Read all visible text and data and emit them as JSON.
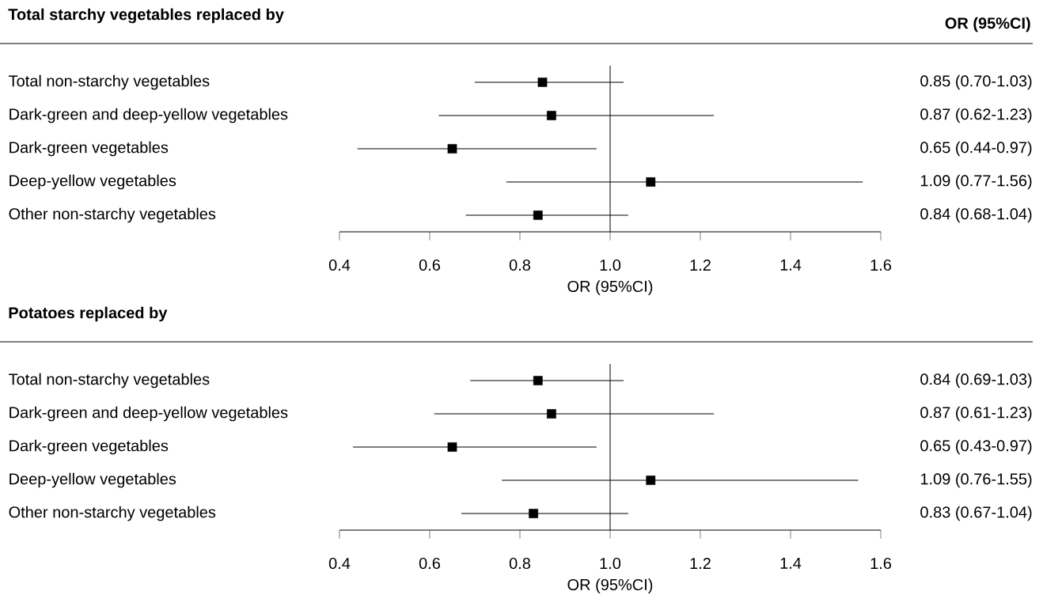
{
  "chart_data": [
    {
      "type": "scatter",
      "title": "Total starchy vegetables replaced by",
      "xlabel": "OR (95%CI)",
      "annotations": [
        "OR (95%CI)"
      ],
      "orientation": "horizontal",
      "color": "#000000",
      "marker": "square",
      "categories": [
        "Total non-starchy vegetables",
        "Dark-green and deep-yellow vegetables",
        "Dark-green vegetables",
        "Deep-yellow vegetables",
        "Other non-starchy vegetables"
      ],
      "values": [
        0.85,
        0.87,
        0.65,
        1.09,
        0.84
      ],
      "errors": [
        [
          0.7,
          1.03
        ],
        [
          0.62,
          1.23
        ],
        [
          0.44,
          0.97
        ],
        [
          0.77,
          1.56
        ],
        [
          0.68,
          1.04
        ]
      ],
      "value_labels": [
        "0.85 (0.70-1.03)",
        "0.87 (0.62-1.23)",
        "0.65 (0.44-0.97)",
        "1.09 (0.77-1.56)",
        "0.84 (0.68-1.04)"
      ],
      "xlim": [
        0.4,
        1.6
      ],
      "xticks": [
        {
          "value": 0.4,
          "label": "0.4"
        },
        {
          "value": 0.6,
          "label": "0.6"
        },
        {
          "value": 0.8,
          "label": "0.8"
        },
        {
          "value": 1,
          "label": "1.0"
        },
        {
          "value": 1.2,
          "label": "1.2"
        },
        {
          "value": 1.4,
          "label": "1.4"
        },
        {
          "value": 1.6,
          "label": "1.6"
        }
      ],
      "ref_lines": [
        {
          "axis": "x",
          "value": 1
        }
      ]
    },
    {
      "type": "scatter",
      "title": "Potatoes replaced by",
      "xlabel": "OR (95%CI)",
      "orientation": "horizontal",
      "color": "#000000",
      "marker": "square",
      "categories": [
        "Total non-starchy vegetables",
        "Dark-green and deep-yellow vegetables",
        "Dark-green vegetables",
        "Deep-yellow vegetables",
        "Other non-starchy vegetables"
      ],
      "values": [
        0.84,
        0.87,
        0.65,
        1.09,
        0.83
      ],
      "errors": [
        [
          0.69,
          1.03
        ],
        [
          0.61,
          1.23
        ],
        [
          0.43,
          0.97
        ],
        [
          0.76,
          1.55
        ],
        [
          0.67,
          1.04
        ]
      ],
      "value_labels": [
        "0.84 (0.69-1.03)",
        "0.87 (0.61-1.23)",
        "0.65 (0.43-0.97)",
        "1.09 (0.76-1.55)",
        "0.83 (0.67-1.04)"
      ],
      "xlim": [
        0.4,
        1.6
      ],
      "xticks": [
        {
          "value": 0.4,
          "label": "0.4"
        },
        {
          "value": 0.6,
          "label": "0.6"
        },
        {
          "value": 0.8,
          "label": "0.8"
        },
        {
          "value": 1,
          "label": "1.0"
        },
        {
          "value": 1.2,
          "label": "1.2"
        },
        {
          "value": 1.4,
          "label": "1.4"
        },
        {
          "value": 1.6,
          "label": "1.6"
        }
      ],
      "ref_lines": [
        {
          "axis": "x",
          "value": 1
        }
      ]
    }
  ]
}
